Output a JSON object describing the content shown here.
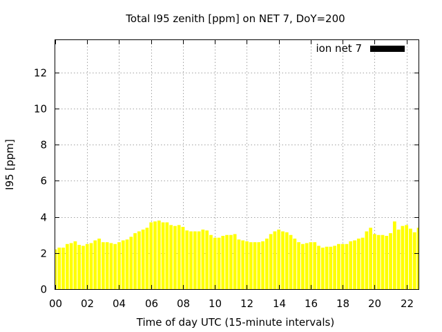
{
  "chart_data": {
    "type": "bar",
    "title": "Total I95 zenith [ppm] on NET 7, DoY=200",
    "xlabel": "Time of day UTC (15-minute intervals)",
    "ylabel": "I95 [ppm]",
    "xlim": [
      0,
      22.75
    ],
    "ylim": [
      0,
      13.8
    ],
    "xticks": [
      0,
      2,
      4,
      6,
      8,
      10,
      12,
      14,
      16,
      18,
      20,
      22
    ],
    "xtick_labels": [
      "00",
      "02",
      "04",
      "06",
      "08",
      "10",
      "12",
      "14",
      "16",
      "18",
      "20",
      "22"
    ],
    "yticks": [
      0,
      2,
      4,
      6,
      8,
      10,
      12
    ],
    "ytick_labels": [
      "0",
      "2",
      "4",
      "6",
      "8",
      "10",
      "12"
    ],
    "grid": true,
    "legend_position": "top-right",
    "series": [
      {
        "name": "ion net 7",
        "color": "#ffff00",
        "legend_color": "#000000",
        "x": [
          0,
          0.25,
          0.5,
          0.75,
          1,
          1.25,
          1.5,
          1.75,
          2,
          2.25,
          2.5,
          2.75,
          3,
          3.25,
          3.5,
          3.75,
          4,
          4.25,
          4.5,
          4.75,
          5,
          5.25,
          5.5,
          5.75,
          6,
          6.25,
          6.5,
          6.75,
          7,
          7.25,
          7.5,
          7.75,
          8,
          8.25,
          8.5,
          8.75,
          9,
          9.25,
          9.5,
          9.75,
          10,
          10.25,
          10.5,
          10.75,
          11,
          11.25,
          11.5,
          11.75,
          12,
          12.25,
          12.5,
          12.75,
          13,
          13.25,
          13.5,
          13.75,
          14,
          14.25,
          14.5,
          14.75,
          15,
          15.25,
          15.5,
          15.75,
          16,
          16.25,
          16.5,
          16.75,
          17,
          17.25,
          17.5,
          17.75,
          18,
          18.25,
          18.5,
          18.75,
          19,
          19.25,
          19.5,
          19.75,
          20,
          20.25,
          20.5,
          20.75,
          21,
          21.25,
          21.5,
          21.75,
          22,
          22.25,
          22.5,
          22.75
        ],
        "values": [
          2.2,
          2.3,
          2.3,
          2.5,
          2.55,
          2.65,
          2.45,
          2.4,
          2.5,
          2.55,
          2.7,
          2.8,
          2.6,
          2.6,
          2.55,
          2.5,
          2.6,
          2.7,
          2.75,
          2.9,
          3.1,
          3.2,
          3.3,
          3.4,
          3.7,
          3.75,
          3.8,
          3.7,
          3.7,
          3.55,
          3.5,
          3.55,
          3.45,
          3.25,
          3.2,
          3.2,
          3.2,
          3.3,
          3.25,
          3.0,
          2.85,
          2.85,
          2.95,
          3.0,
          3.0,
          3.05,
          2.75,
          2.7,
          2.65,
          2.6,
          2.6,
          2.6,
          2.65,
          2.8,
          3.05,
          3.2,
          3.3,
          3.2,
          3.15,
          3.0,
          2.8,
          2.6,
          2.5,
          2.55,
          2.6,
          2.6,
          2.4,
          2.3,
          2.35,
          2.35,
          2.4,
          2.5,
          2.5,
          2.5,
          2.65,
          2.7,
          2.8,
          2.85,
          3.2,
          3.4,
          3.05,
          3.0,
          3.0,
          2.95,
          3.1,
          3.75,
          3.3,
          3.5,
          3.55,
          3.35,
          3.15,
          3.4
        ]
      }
    ]
  }
}
